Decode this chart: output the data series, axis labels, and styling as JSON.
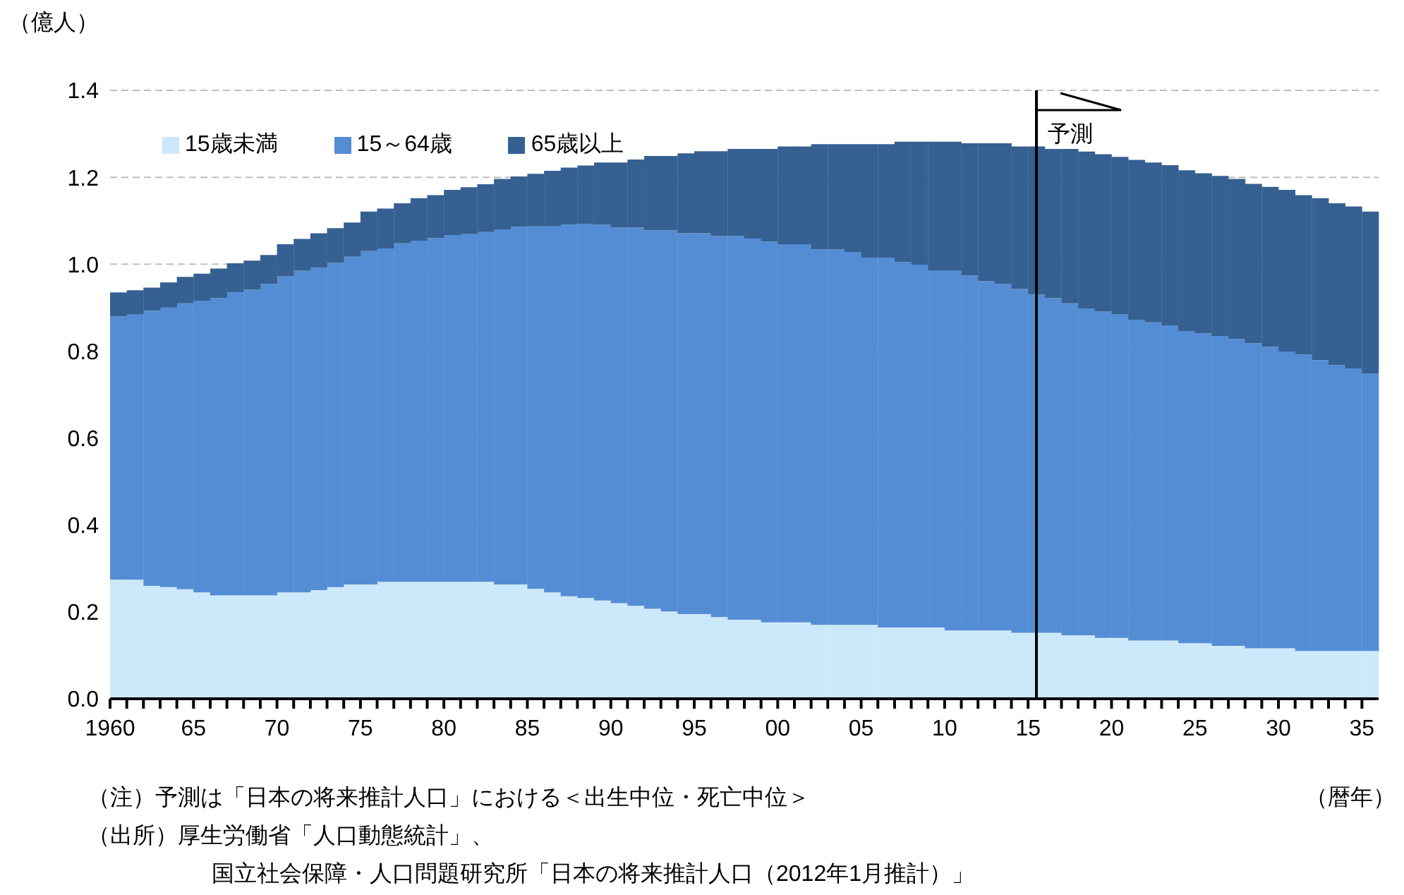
{
  "chart_data": {
    "type": "bar",
    "stacked": true,
    "ylabel": "（億人）",
    "xlabel": "（暦年）",
    "categories": [
      "1960",
      null,
      null,
      null,
      null,
      "65",
      null,
      null,
      null,
      null,
      "70",
      null,
      null,
      null,
      null,
      "75",
      null,
      null,
      null,
      null,
      "80",
      null,
      null,
      null,
      null,
      "85",
      null,
      null,
      null,
      null,
      "90",
      null,
      null,
      null,
      null,
      "95",
      null,
      null,
      null,
      null,
      "00",
      null,
      null,
      null,
      null,
      "05",
      null,
      null,
      null,
      null,
      "10",
      null,
      null,
      null,
      null,
      "15",
      null,
      null,
      null,
      null,
      "20",
      null,
      null,
      null,
      null,
      "25",
      null,
      null,
      null,
      null,
      "30",
      null,
      null,
      null,
      null,
      "35"
    ],
    "series": [
      {
        "name": "15歳未満",
        "color": "#cce9fb",
        "values": [
          0.274,
          0.274,
          0.26,
          0.257,
          0.252,
          0.245,
          0.238,
          0.238,
          0.238,
          0.238,
          0.245,
          0.245,
          0.25,
          0.257,
          0.263,
          0.263,
          0.269,
          0.269,
          0.269,
          0.269,
          0.269,
          0.269,
          0.269,
          0.263,
          0.263,
          0.253,
          0.245,
          0.236,
          0.232,
          0.226,
          0.22,
          0.214,
          0.207,
          0.201,
          0.195,
          0.195,
          0.188,
          0.182,
          0.182,
          0.176,
          0.176,
          0.176,
          0.17,
          0.17,
          0.17,
          0.17,
          0.164,
          0.164,
          0.164,
          0.164,
          0.157,
          0.157,
          0.157,
          0.157,
          0.152,
          0.152,
          0.152,
          0.146,
          0.146,
          0.14,
          0.14,
          0.134,
          0.134,
          0.134,
          0.128,
          0.128,
          0.122,
          0.122,
          0.116,
          0.116,
          0.116,
          0.11,
          0.11,
          0.11,
          0.11,
          0.11
        ]
      },
      {
        "name": "15～64歳",
        "color": "#548dd4",
        "values": [
          0.606,
          0.611,
          0.633,
          0.643,
          0.658,
          0.671,
          0.684,
          0.697,
          0.703,
          0.716,
          0.727,
          0.74,
          0.742,
          0.746,
          0.754,
          0.767,
          0.767,
          0.779,
          0.785,
          0.791,
          0.798,
          0.8,
          0.805,
          0.817,
          0.823,
          0.834,
          0.842,
          0.855,
          0.861,
          0.865,
          0.864,
          0.87,
          0.871,
          0.877,
          0.876,
          0.876,
          0.877,
          0.883,
          0.877,
          0.876,
          0.87,
          0.87,
          0.864,
          0.864,
          0.858,
          0.845,
          0.851,
          0.841,
          0.835,
          0.822,
          0.829,
          0.817,
          0.804,
          0.797,
          0.791,
          0.778,
          0.77,
          0.764,
          0.752,
          0.751,
          0.745,
          0.738,
          0.732,
          0.725,
          0.718,
          0.713,
          0.713,
          0.706,
          0.702,
          0.694,
          0.683,
          0.682,
          0.669,
          0.658,
          0.65,
          0.638
        ]
      },
      {
        "name": "65歳以上",
        "color": "#366092",
        "values": [
          0.055,
          0.055,
          0.053,
          0.058,
          0.061,
          0.062,
          0.068,
          0.067,
          0.067,
          0.067,
          0.074,
          0.073,
          0.079,
          0.08,
          0.079,
          0.091,
          0.092,
          0.092,
          0.098,
          0.099,
          0.104,
          0.108,
          0.11,
          0.116,
          0.116,
          0.121,
          0.128,
          0.131,
          0.134,
          0.143,
          0.15,
          0.157,
          0.171,
          0.171,
          0.184,
          0.189,
          0.195,
          0.2,
          0.206,
          0.213,
          0.225,
          0.225,
          0.242,
          0.242,
          0.248,
          0.261,
          0.261,
          0.277,
          0.283,
          0.296,
          0.296,
          0.304,
          0.317,
          0.324,
          0.328,
          0.341,
          0.343,
          0.355,
          0.361,
          0.362,
          0.362,
          0.368,
          0.368,
          0.369,
          0.37,
          0.368,
          0.368,
          0.368,
          0.367,
          0.368,
          0.372,
          0.367,
          0.373,
          0.372,
          0.373,
          0.373
        ]
      }
    ],
    "ylim": [
      0,
      1.4
    ],
    "yticks": [
      {
        "value": 0,
        "label": "0.0"
      },
      {
        "value": 0.2,
        "label": "0.2"
      },
      {
        "value": 0.4,
        "label": "0.4"
      },
      {
        "value": 0.6,
        "label": "0.6"
      },
      {
        "value": 0.8,
        "label": "0.8"
      },
      {
        "value": 1,
        "label": "1.0"
      },
      {
        "value": 1.2,
        "label": "1.2"
      },
      {
        "value": 1.4,
        "label": "1.4"
      }
    ],
    "grid": "y",
    "legend": "top left",
    "ref_lines": [
      {
        "axis": "x",
        "value": "15",
        "label": "予測",
        "color": "#000000"
      }
    ],
    "annotations": [
      "（注）予測は「日本の将来推計人口」における＜出生中位・死亡中位＞",
      "（出所）厚生労働省「人口動態統計」、",
      "国立社会保障・人口問題研究所「日本の将来推計人口（2012年1月推計）」"
    ]
  }
}
